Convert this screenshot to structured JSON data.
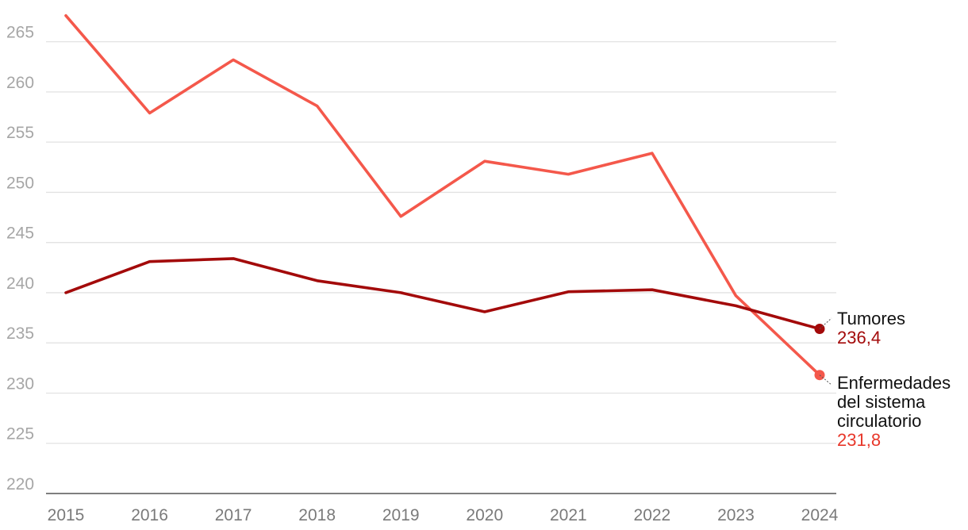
{
  "chart_data": {
    "type": "line",
    "x": [
      "2015",
      "2016",
      "2017",
      "2018",
      "2019",
      "2020",
      "2021",
      "2022",
      "2023",
      "2024"
    ],
    "ylim": [
      220,
      267.5
    ],
    "yticks": [
      "220",
      "225",
      "230",
      "235",
      "240",
      "245",
      "250",
      "255",
      "260",
      "265"
    ],
    "grid": true,
    "series": [
      {
        "name": "Enfermedades del sistema circulatorio",
        "name_lines": [
          "Enfermedades",
          "del sistema",
          "circulatorio"
        ],
        "values": [
          267.6,
          257.9,
          263.2,
          258.6,
          247.6,
          253.1,
          251.8,
          253.9,
          239.7,
          231.8
        ],
        "end_label": "231,8",
        "color": "#f4584b",
        "label_color": "#e8372a"
      },
      {
        "name": "Tumores",
        "name_lines": [
          "Tumores"
        ],
        "values": [
          240.0,
          243.1,
          243.4,
          241.2,
          240.0,
          238.1,
          240.1,
          240.3,
          238.7,
          236.4
        ],
        "end_label": "236,4",
        "color": "#a30a0a",
        "label_color": "#a30a0a"
      }
    ]
  }
}
